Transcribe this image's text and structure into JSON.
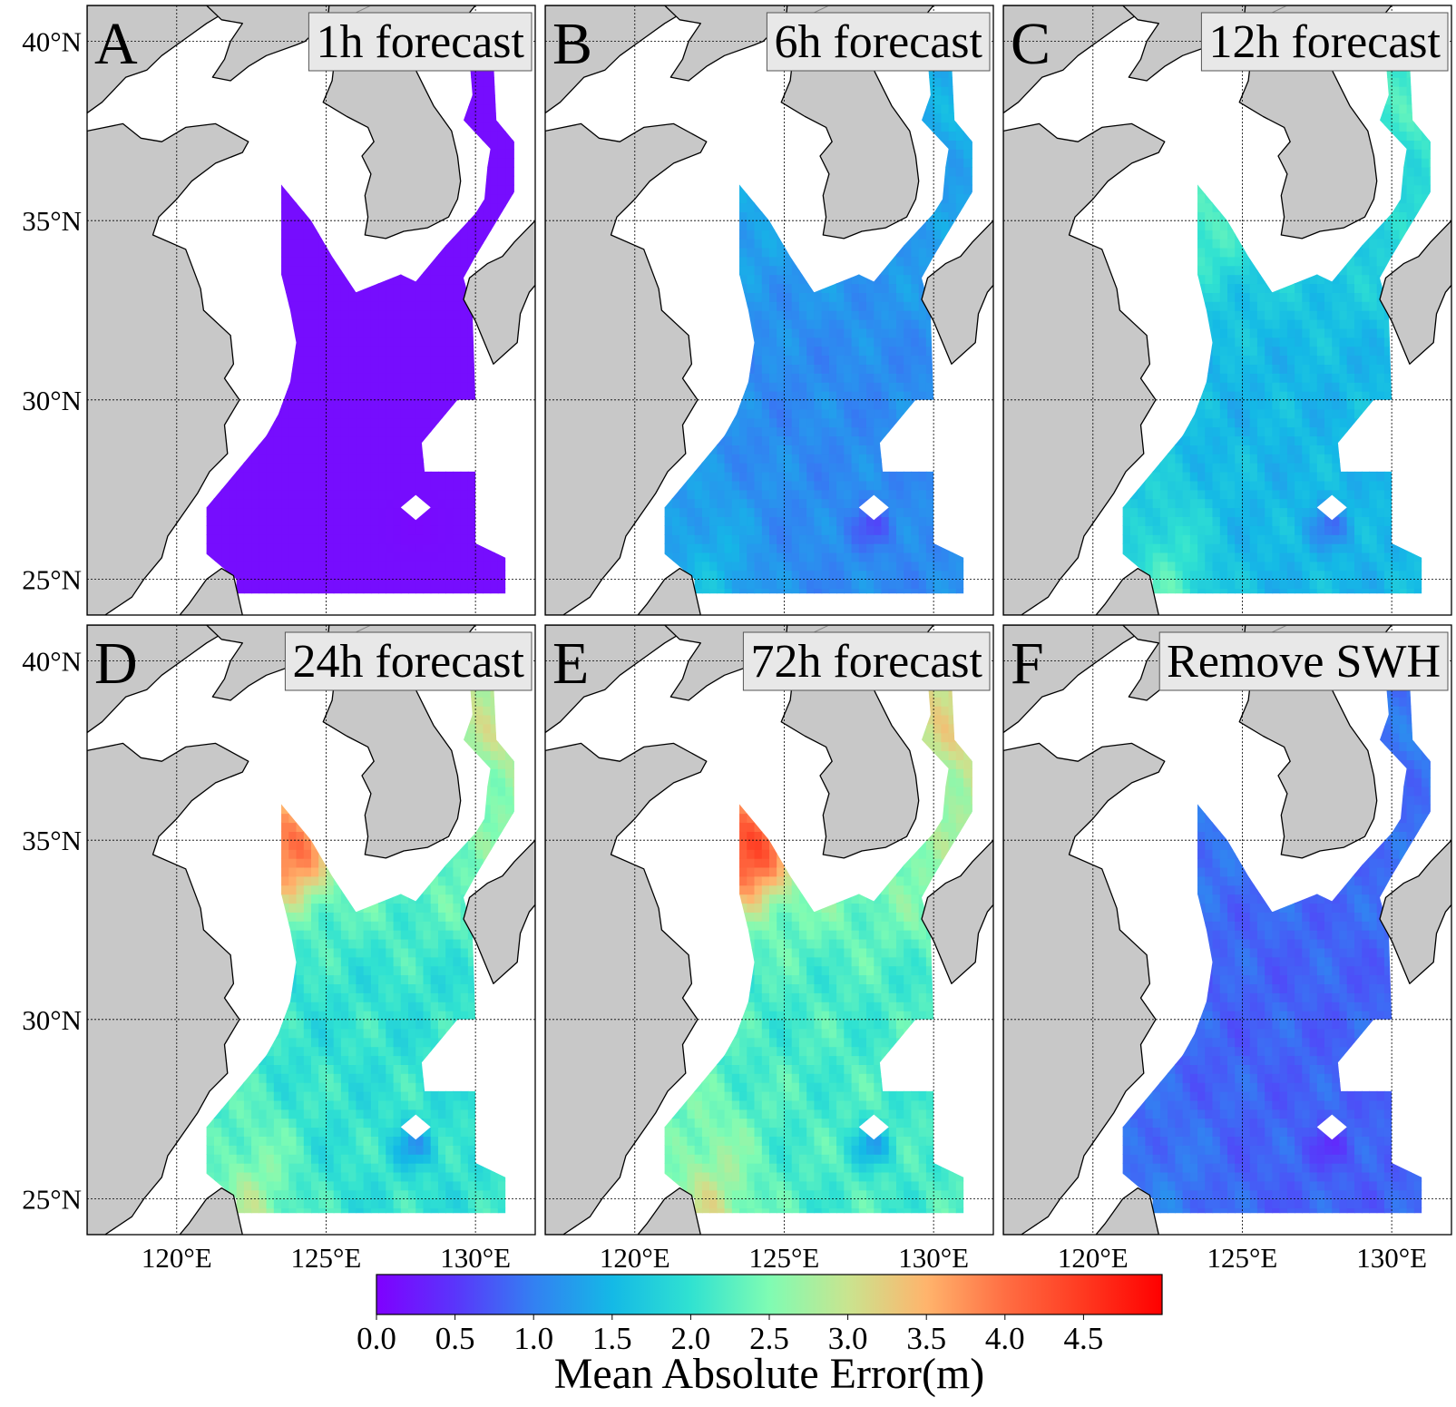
{
  "figure": {
    "panels": [
      {
        "letter": "A",
        "label": "1h forecast",
        "field": {
          "base": 0.12,
          "north": 0.0,
          "south": 0.0,
          "hot": 0.0,
          "jitter": 0.0
        }
      },
      {
        "letter": "B",
        "label": "6h forecast",
        "field": {
          "base": 1.1,
          "north": 0.25,
          "south": 0.45,
          "hot": 0.1,
          "jitter": 0.12
        }
      },
      {
        "letter": "C",
        "label": "12h forecast",
        "field": {
          "base": 1.5,
          "north": 0.5,
          "south": 0.7,
          "hot": 0.45,
          "jitter": 0.15
        }
      },
      {
        "letter": "D",
        "label": "24h forecast",
        "field": {
          "base": 2.0,
          "north": 0.7,
          "south": 0.75,
          "hot": 1.7,
          "jitter": 0.2
        }
      },
      {
        "letter": "E",
        "label": "72h forecast",
        "field": {
          "base": 2.15,
          "north": 0.75,
          "south": 0.8,
          "hot": 1.9,
          "jitter": 0.2
        }
      },
      {
        "letter": "F",
        "label": "Remove SWH",
        "field": {
          "base": 0.8,
          "north": 0.1,
          "south": 0.2,
          "hot": 0.1,
          "jitter": 0.12
        }
      }
    ],
    "lat_ticks": [
      {
        "value": 40,
        "label": "40°N"
      },
      {
        "value": 35,
        "label": "35°N"
      },
      {
        "value": 30,
        "label": "30°N"
      },
      {
        "value": 25,
        "label": "25°N"
      }
    ],
    "lon_ticks": [
      {
        "value": 120,
        "label": "120°E"
      },
      {
        "value": 125,
        "label": "125°E"
      },
      {
        "value": 130,
        "label": "130°E"
      }
    ],
    "extent": {
      "lon_min": 117,
      "lon_max": 132,
      "lat_min": 24,
      "lat_max": 41
    },
    "colorbar": {
      "label": "Mean Absolute Error(m)",
      "range": [
        0,
        5
      ],
      "ticks": [
        "0.0",
        "0.5",
        "1.0",
        "1.5",
        "2.0",
        "2.5",
        "3.0",
        "3.5",
        "4.0",
        "4.5"
      ],
      "colormap": "rainbow"
    },
    "colors": {
      "land": "#c8c8c8",
      "coast": "#000000",
      "grid": "#000000",
      "label_box": "#e8e8e8"
    }
  }
}
